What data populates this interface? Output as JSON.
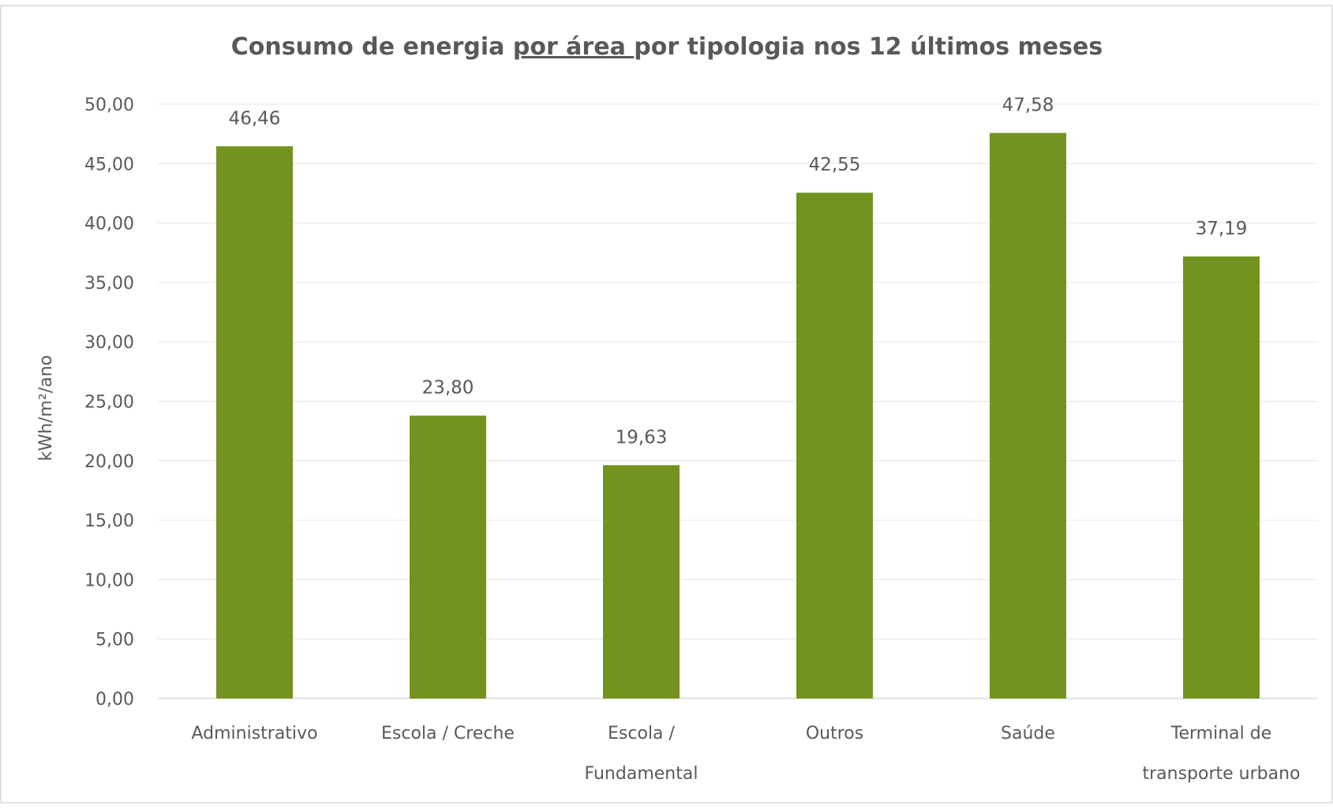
{
  "chart_data": {
    "type": "bar",
    "title_parts": [
      "Consumo de energia ",
      "por área ",
      "por tipologia nos 12 últimos meses"
    ],
    "ylabel": "kWh/m²/ano",
    "xlabel": "",
    "ylim": [
      0,
      50
    ],
    "y_ticks": [
      "0,00",
      "5,00",
      "10,00",
      "15,00",
      "20,00",
      "25,00",
      "30,00",
      "35,00",
      "40,00",
      "45,00",
      "50,00"
    ],
    "categories": [
      [
        "Administrativo"
      ],
      [
        "Escola / Creche"
      ],
      [
        "Escola /",
        "Fundamental"
      ],
      [
        "Outros"
      ],
      [
        "Saúde"
      ],
      [
        "Terminal de",
        "transporte urbano"
      ]
    ],
    "values": [
      46.46,
      23.8,
      19.63,
      42.55,
      47.58,
      37.19
    ],
    "data_labels": [
      "46,46",
      "23,80",
      "19,63",
      "42,55",
      "47,58",
      "37,19"
    ],
    "bar_color": "#72931f",
    "grid": true,
    "legend": "none"
  }
}
